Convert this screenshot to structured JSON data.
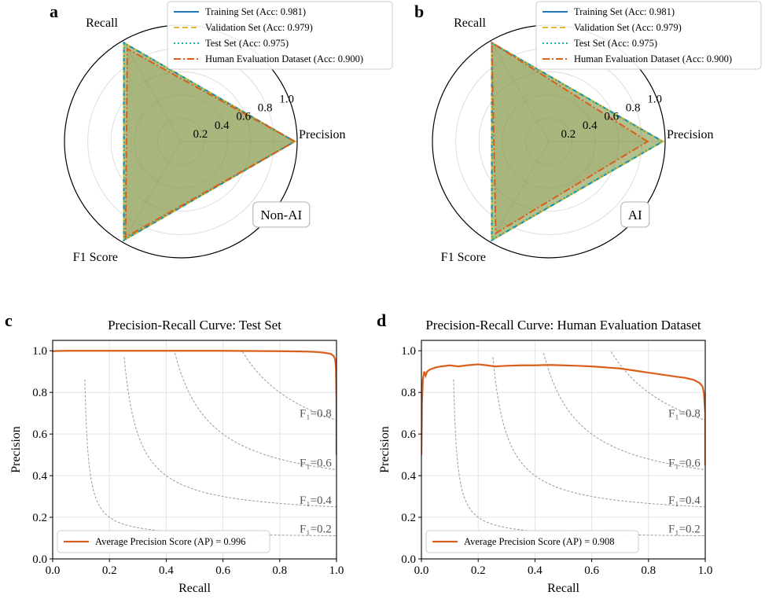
{
  "colors": {
    "training": "#1f77b4",
    "validation": "#e8b92a",
    "test": "#17b8a0",
    "human": "#d95f1a",
    "pr_curve": "#d95f1a",
    "fill": "#8a9a4a",
    "iso_f1": "#9a9a9a",
    "grid": "#dddddd"
  },
  "radar_common": {
    "axes": [
      "Precision",
      "Recall",
      "F1 Score"
    ],
    "radial_ticks": [
      "0.2",
      "0.4",
      "0.6",
      "0.8",
      "1.0"
    ]
  },
  "legend_entries": [
    {
      "label": "Training Set (Acc: 0.981)",
      "style": "solid",
      "color": "#1f77b4"
    },
    {
      "label": "Validation Set (Acc: 0.979)",
      "style": "dashed",
      "color": "#e8b92a"
    },
    {
      "label": "Test Set (Acc: 0.975)",
      "style": "dotted",
      "color": "#17b8a0"
    },
    {
      "label": "Human Evaluation Dataset (Acc: 0.900)",
      "style": "dashdot",
      "color": "#d95f1a"
    }
  ],
  "iso_f1_labels": [
    "F₁=0.8",
    "F₁=0.6",
    "F₁=0.4",
    "F₁=0.2"
  ],
  "chart_data": [
    {
      "type": "radar",
      "panel": "a",
      "class_label": "Non-AI",
      "axes": [
        "Precision",
        "Recall",
        "F1 Score"
      ],
      "rlim": [
        0,
        1.0
      ],
      "series": [
        {
          "name": "Training Set (Acc: 0.981)",
          "values": [
            0.98,
            0.98,
            0.98
          ]
        },
        {
          "name": "Validation Set (Acc: 0.979)",
          "values": [
            0.98,
            0.98,
            0.98
          ]
        },
        {
          "name": "Test Set (Acc: 0.975)",
          "values": [
            0.975,
            0.975,
            0.975
          ]
        },
        {
          "name": "Human Evaluation Dataset (Acc: 0.900)",
          "values": [
            0.98,
            0.92,
            0.95
          ]
        }
      ]
    },
    {
      "type": "radar",
      "panel": "b",
      "class_label": "AI",
      "axes": [
        "Precision",
        "Recall",
        "F1 Score"
      ],
      "rlim": [
        0,
        1.0
      ],
      "series": [
        {
          "name": "Training Set (Acc: 0.981)",
          "values": [
            0.98,
            0.98,
            0.98
          ]
        },
        {
          "name": "Validation Set (Acc: 0.979)",
          "values": [
            0.98,
            0.98,
            0.98
          ]
        },
        {
          "name": "Test Set (Acc: 0.975)",
          "values": [
            0.975,
            0.975,
            0.975
          ]
        },
        {
          "name": "Human Evaluation Dataset (Acc: 0.900)",
          "values": [
            0.85,
            0.98,
            0.91
          ]
        }
      ]
    },
    {
      "type": "line",
      "panel": "c",
      "title": "Precision-Recall Curve: Test Set",
      "xlabel": "Recall",
      "ylabel": "Precision",
      "xlim": [
        0.0,
        1.0
      ],
      "ylim": [
        0.0,
        1.05
      ],
      "xticks": [
        "0.0",
        "0.2",
        "0.4",
        "0.6",
        "0.8",
        "1.0"
      ],
      "yticks": [
        "0.0",
        "0.2",
        "0.4",
        "0.6",
        "0.8",
        "1.0"
      ],
      "grid": true,
      "legend_position": "lower-left",
      "iso_f1": [
        0.8,
        0.6,
        0.4,
        0.2
      ],
      "series": [
        {
          "name": "Average Precision Score (AP) = 0.996",
          "x": [
            0.0,
            0.003,
            0.01,
            0.05,
            0.1,
            0.2,
            0.3,
            0.4,
            0.5,
            0.6,
            0.7,
            0.8,
            0.85,
            0.9,
            0.93,
            0.96,
            0.98,
            0.99,
            0.995,
            0.998,
            1.0,
            1.0
          ],
          "y": [
            0.995,
            0.998,
            0.999,
            1.0,
            1.0,
            1.0,
            1.0,
            1.0,
            1.0,
            1.0,
            0.999,
            0.998,
            0.997,
            0.996,
            0.994,
            0.99,
            0.985,
            0.975,
            0.96,
            0.92,
            0.75,
            0.5
          ]
        }
      ]
    },
    {
      "type": "line",
      "panel": "d",
      "title": "Precision-Recall Curve: Human Evaluation Dataset",
      "xlabel": "Recall",
      "ylabel": "Precision",
      "xlim": [
        0.0,
        1.0
      ],
      "ylim": [
        0.0,
        1.05
      ],
      "xticks": [
        "0.0",
        "0.2",
        "0.4",
        "0.6",
        "0.8",
        "1.0"
      ],
      "yticks": [
        "0.0",
        "0.2",
        "0.4",
        "0.6",
        "0.8",
        "1.0"
      ],
      "grid": true,
      "legend_position": "lower-left",
      "iso_f1": [
        0.8,
        0.6,
        0.4,
        0.2
      ],
      "series": [
        {
          "name": "Average Precision Score (AP) = 0.908",
          "x": [
            0.0,
            0.002,
            0.005,
            0.01,
            0.015,
            0.02,
            0.03,
            0.05,
            0.07,
            0.1,
            0.13,
            0.16,
            0.2,
            0.23,
            0.26,
            0.3,
            0.35,
            0.4,
            0.45,
            0.5,
            0.55,
            0.6,
            0.65,
            0.7,
            0.75,
            0.8,
            0.85,
            0.9,
            0.93,
            0.96,
            0.98,
            0.99,
            0.995,
            1.0,
            1.0
          ],
          "y": [
            0.5,
            0.75,
            0.86,
            0.9,
            0.88,
            0.9,
            0.91,
            0.92,
            0.925,
            0.93,
            0.925,
            0.93,
            0.935,
            0.93,
            0.925,
            0.928,
            0.93,
            0.93,
            0.932,
            0.93,
            0.928,
            0.925,
            0.92,
            0.915,
            0.905,
            0.895,
            0.885,
            0.875,
            0.87,
            0.86,
            0.845,
            0.83,
            0.8,
            0.7,
            0.45
          ]
        }
      ]
    }
  ]
}
